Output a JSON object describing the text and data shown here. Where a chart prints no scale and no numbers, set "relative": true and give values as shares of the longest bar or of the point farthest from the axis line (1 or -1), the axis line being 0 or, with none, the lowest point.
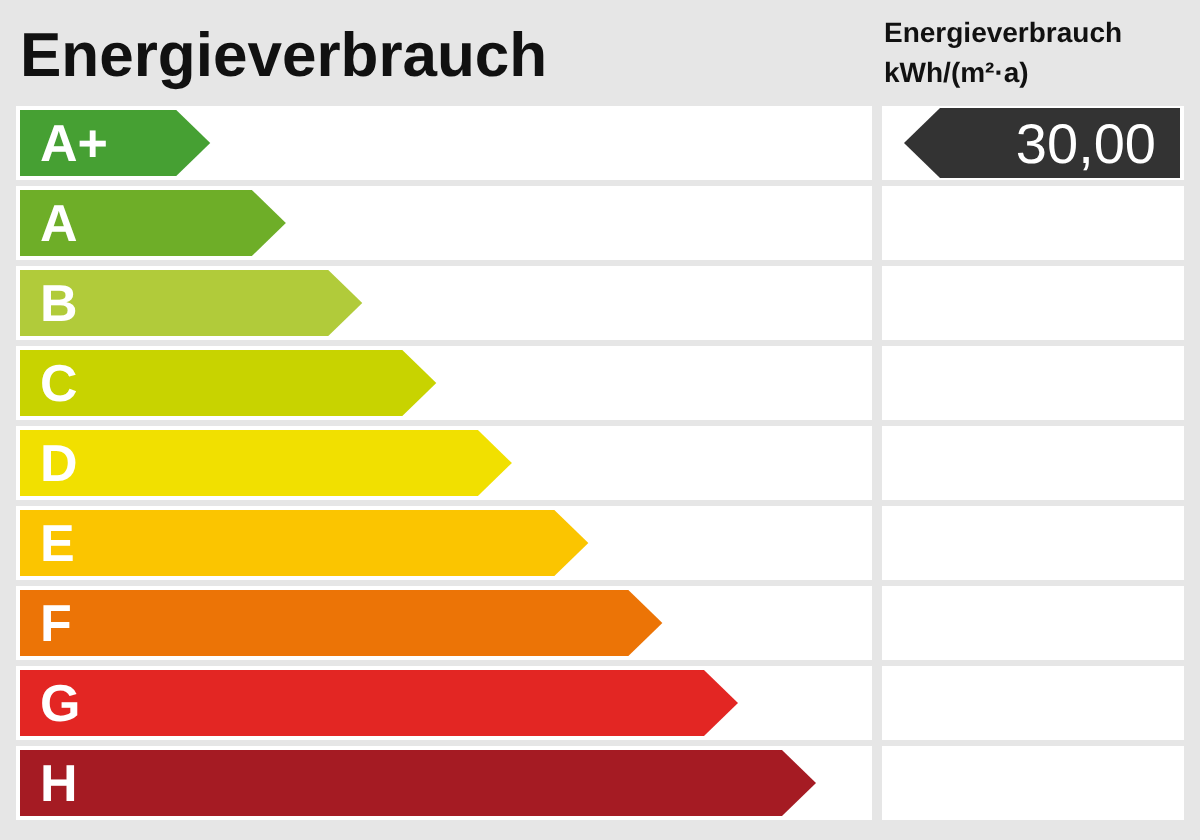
{
  "chart_data": {
    "type": "bar",
    "orientation": "horizontal",
    "relative": true,
    "title": "Energieverbrauch",
    "categories": [
      "A+",
      "A",
      "B",
      "C",
      "D",
      "E",
      "F",
      "G",
      "H"
    ],
    "values": [
      0.239,
      0.334,
      0.43,
      0.523,
      0.618,
      0.714,
      0.807,
      0.902,
      1
    ],
    "colors": [
      "#46a033",
      "#6eae28",
      "#b1cb3a",
      "#c8d300",
      "#f1e000",
      "#fbc500",
      "#ec7406",
      "#e32623",
      "#a51b23"
    ],
    "annotations": [
      "Energieverbrauch kWh/(m²·a)",
      "30,00"
    ]
  }
}
